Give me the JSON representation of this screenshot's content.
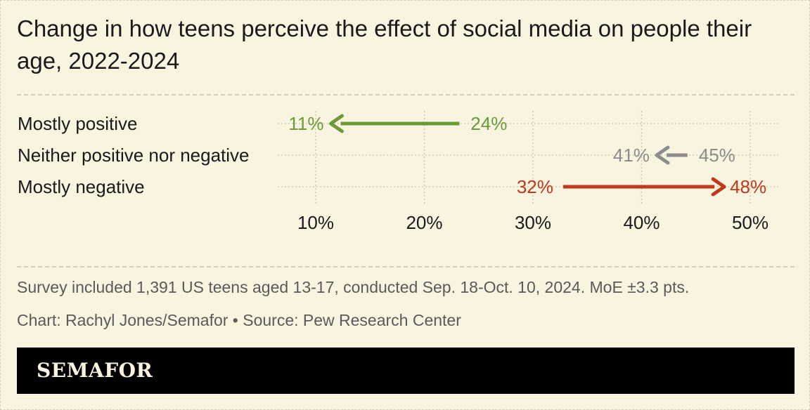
{
  "chart_data": {
    "type": "arrow",
    "title": "Change in how teens perceive the effect of social media on people their age, 2022-2024",
    "start_year": "2022",
    "end_year": "2024",
    "xlim": [
      6,
      51
    ],
    "ticks": [
      10,
      20,
      30,
      40,
      50
    ],
    "tick_labels": [
      "10%",
      "20%",
      "30%",
      "40%",
      "50%"
    ],
    "rows": [
      {
        "label": "Mostly positive",
        "from": 24,
        "to": 11,
        "from_label": "24%",
        "to_label": "11%",
        "color": "#6a9a3a"
      },
      {
        "label": "Neither positive nor negative",
        "from": 45,
        "to": 41,
        "from_label": "45%",
        "to_label": "41%",
        "color": "#8c8c8c"
      },
      {
        "label": "Mostly negative",
        "from": 32,
        "to": 48,
        "from_label": "32%",
        "to_label": "48%",
        "color": "#c0391b"
      }
    ]
  },
  "notes": {
    "survey": "Survey included 1,391 US teens aged 13-17, conducted Sep. 18-Oct. 10, 2024. MoE ±3.3 pts.",
    "credit": "Chart: Rachyl Jones/Semafor • Source: Pew Research Center"
  },
  "brand": "SEMAFOR",
  "colors": {
    "background": "#f8f4e0",
    "footer": "#000000",
    "grid": "#c9c4ab"
  }
}
